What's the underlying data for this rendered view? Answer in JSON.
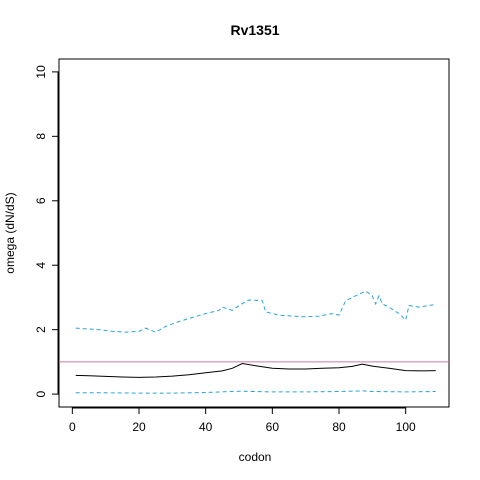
{
  "chart_data": {
    "type": "line",
    "title": "Rv1351",
    "xlabel": "codon",
    "ylabel": "omega (dN/dS)",
    "xlim": [
      -4,
      113
    ],
    "ylim": [
      -0.4,
      10.4
    ],
    "x_ticks": [
      0,
      20,
      40,
      60,
      80,
      100
    ],
    "y_ticks": [
      0,
      2,
      4,
      6,
      8,
      10
    ],
    "grid": false,
    "legend": "none",
    "reference_line": {
      "y": 1,
      "color": "#cc79a7"
    },
    "series": [
      {
        "style": "solid",
        "color": "#000000",
        "x": [
          1,
          5,
          10,
          15,
          20,
          25,
          30,
          35,
          40,
          45,
          48,
          51,
          55,
          60,
          65,
          70,
          75,
          80,
          84,
          87,
          90,
          95,
          100,
          105,
          109
        ],
        "y": [
          0.58,
          0.57,
          0.55,
          0.53,
          0.52,
          0.53,
          0.56,
          0.6,
          0.66,
          0.72,
          0.8,
          0.95,
          0.88,
          0.8,
          0.78,
          0.78,
          0.8,
          0.82,
          0.86,
          0.93,
          0.87,
          0.8,
          0.73,
          0.72,
          0.73
        ]
      },
      {
        "style": "dashed",
        "color": "#29a3d8",
        "x": [
          1,
          5,
          8,
          12,
          16,
          20,
          22,
          25,
          28,
          32,
          35,
          40,
          44,
          45,
          48,
          50,
          53,
          57,
          58,
          62,
          66,
          70,
          74,
          78,
          80,
          82,
          86,
          88,
          90,
          91,
          92,
          93,
          95,
          98,
          100,
          101,
          104,
          107,
          109
        ],
        "y": [
          2.05,
          2.02,
          2.0,
          1.95,
          1.92,
          1.95,
          2.05,
          1.92,
          2.1,
          2.25,
          2.35,
          2.5,
          2.6,
          2.7,
          2.6,
          2.75,
          2.92,
          2.9,
          2.55,
          2.45,
          2.42,
          2.4,
          2.42,
          2.5,
          2.45,
          2.9,
          3.1,
          3.2,
          3.05,
          2.8,
          3.05,
          2.8,
          2.7,
          2.5,
          2.3,
          2.75,
          2.7,
          2.75,
          2.78
        ]
      },
      {
        "style": "dashed",
        "color": "#29a3d8",
        "x": [
          1,
          10,
          20,
          30,
          40,
          50,
          60,
          70,
          80,
          87,
          90,
          100,
          109
        ],
        "y": [
          0.04,
          0.04,
          0.03,
          0.03,
          0.05,
          0.09,
          0.07,
          0.07,
          0.08,
          0.1,
          0.08,
          0.07,
          0.08
        ]
      }
    ]
  }
}
